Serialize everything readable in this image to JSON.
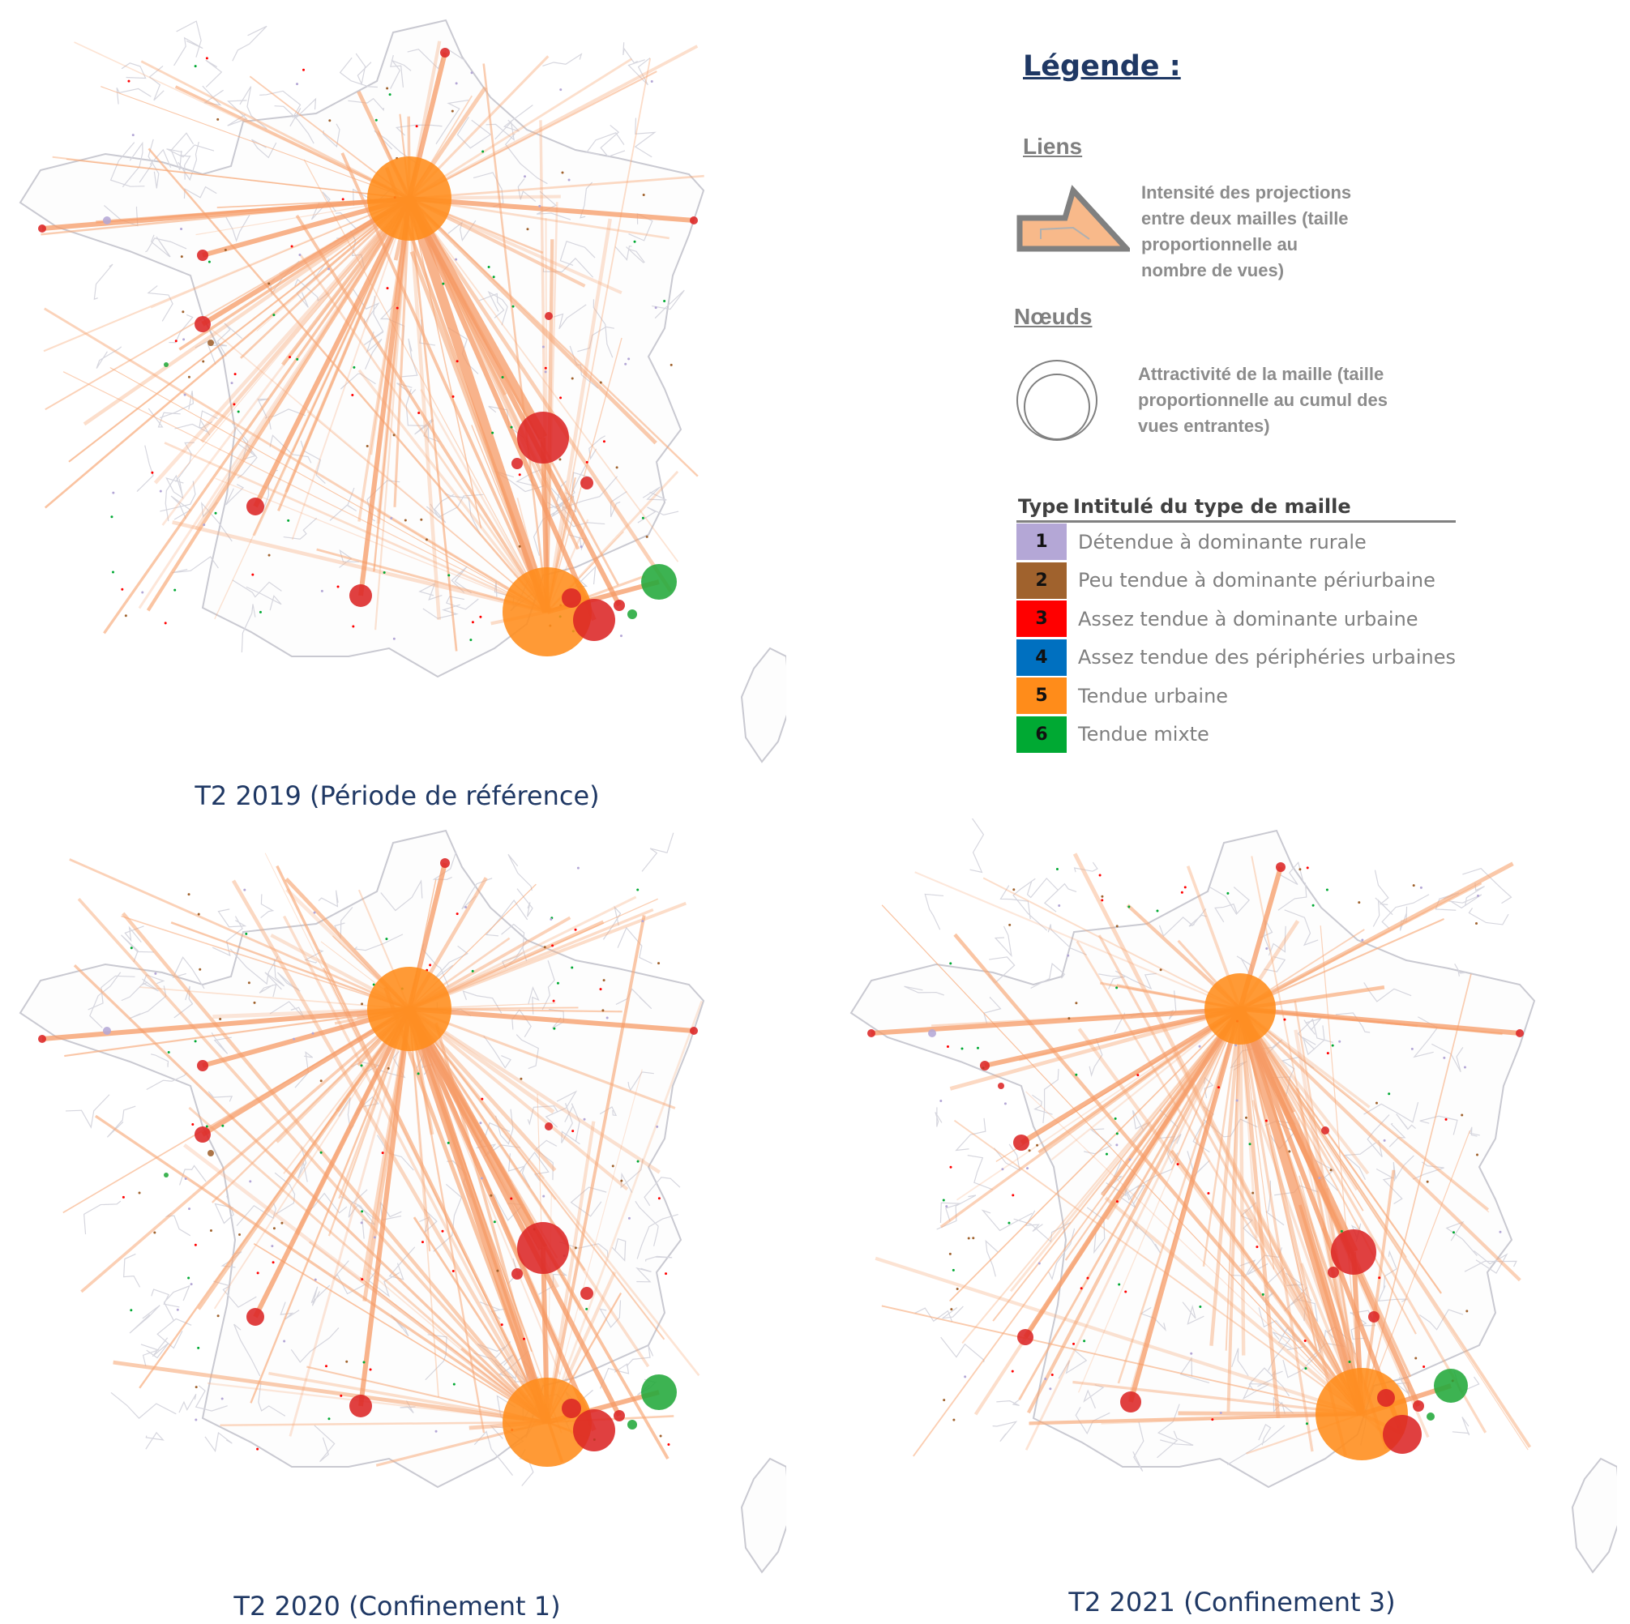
{
  "legend": {
    "title": "Légende :",
    "liens_title": "Liens",
    "liens_desc": [
      "Intensité des projections",
      "entre deux  mailles (taille",
      "proportionnelle au",
      "nombre de vues)"
    ],
    "noeuds_title": "Nœuds",
    "noeuds_desc": [
      "Attractivité de la maille (taille",
      "proportionnelle au cumul des",
      "vues entrantes)"
    ],
    "table_header": {
      "type": "Type",
      "label": "Intitulé du type de maille"
    },
    "types": [
      {
        "num": "1",
        "label": "Détendue à dominante rurale",
        "color": "#b4a7d6"
      },
      {
        "num": "2",
        "label": "Peu tendue à dominante périurbaine",
        "color": "#a0622d"
      },
      {
        "num": "3",
        "label": "Assez tendue à dominante urbaine",
        "color": "#ff0000"
      },
      {
        "num": "4",
        "label": "Assez tendue des périphéries urbaines",
        "color": "#0070c0"
      },
      {
        "num": "5",
        "label": "Tendue urbaine",
        "color": "#ff8c1a"
      },
      {
        "num": "6",
        "label": "Tendue mixte",
        "color": "#00a933"
      }
    ]
  },
  "maps": [
    {
      "caption": "T2 2019 (Période de référence)"
    },
    {
      "caption": "T2 2020 (Confinement 1)"
    },
    {
      "caption": "T2 2021 (Confinement 3)"
    }
  ]
}
